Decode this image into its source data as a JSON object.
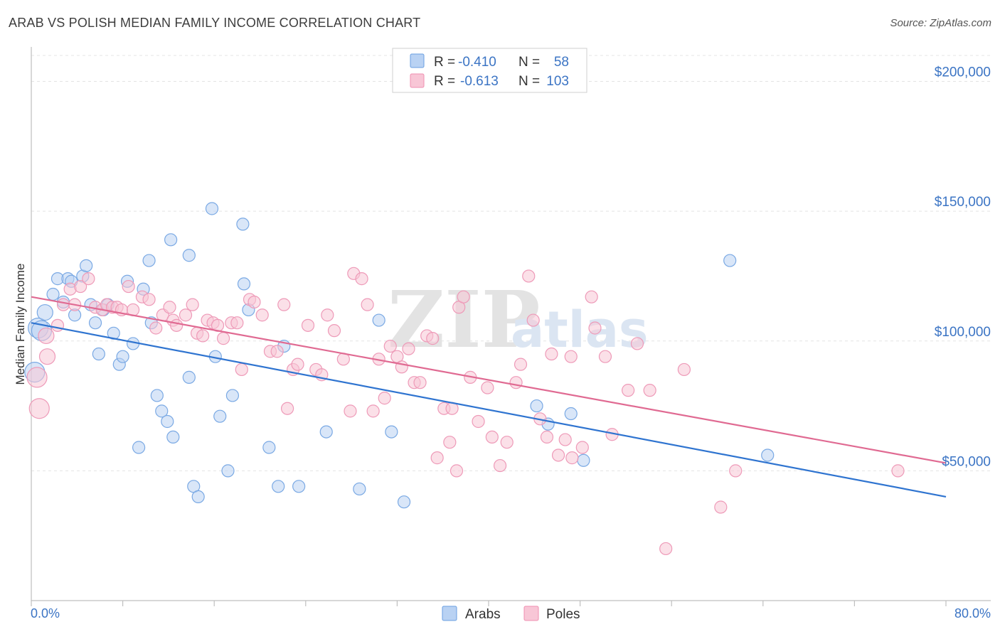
{
  "title": "ARAB VS POLISH MEDIAN FAMILY INCOME CORRELATION CHART",
  "source": "Source: ZipAtlas.com",
  "watermark": {
    "zip": "ZIP",
    "atlas": "atlas"
  },
  "legend": {
    "rows": [
      {
        "r_label": "R =",
        "r_value": "-0.410",
        "n_label": "N =",
        "n_value": "58"
      },
      {
        "r_label": "R =",
        "r_value": "-0.613",
        "n_label": "N =",
        "n_value": "103"
      }
    ]
  },
  "chart_data": {
    "type": "scatter",
    "title": "ARAB VS POLISH MEDIAN FAMILY INCOME CORRELATION CHART",
    "xlabel": "",
    "ylabel": "Median Family Income",
    "xlim": [
      0,
      80
    ],
    "ylim": [
      0,
      210000
    ],
    "x_tick_labels": [
      "0.0%",
      "80.0%"
    ],
    "y_ticks": [
      50000,
      100000,
      150000,
      200000
    ],
    "y_tick_labels": [
      "$50,000",
      "$100,000",
      "$150,000",
      "$200,000"
    ],
    "colors": {
      "Arabs": "#6a9fe0",
      "Poles": "#ef8fb0",
      "Arabs_line": "#2f74d0",
      "Poles_line": "#e06a92"
    },
    "series": [
      {
        "name": "Arabs",
        "trend": {
          "x": [
            0,
            80
          ],
          "y": [
            107000,
            40000
          ]
        },
        "points": [
          [
            0.3,
            88000
          ],
          [
            0.6,
            105000
          ],
          [
            1.2,
            111000
          ],
          [
            1.9,
            118000
          ],
          [
            2.3,
            124000
          ],
          [
            2.8,
            115000
          ],
          [
            3.2,
            124000
          ],
          [
            3.5,
            123000
          ],
          [
            3.8,
            110000
          ],
          [
            4.5,
            125000
          ],
          [
            4.8,
            129000
          ],
          [
            5.2,
            114000
          ],
          [
            5.6,
            107000
          ],
          [
            5.9,
            95000
          ],
          [
            6.3,
            112000
          ],
          [
            6.7,
            114000
          ],
          [
            7.2,
            103000
          ],
          [
            7.7,
            91000
          ],
          [
            8.0,
            94000
          ],
          [
            8.4,
            123000
          ],
          [
            8.9,
            99000
          ],
          [
            9.4,
            59000
          ],
          [
            9.8,
            120000
          ],
          [
            10.3,
            131000
          ],
          [
            10.5,
            107000
          ],
          [
            11.0,
            79000
          ],
          [
            11.4,
            73000
          ],
          [
            11.9,
            69000
          ],
          [
            12.4,
            63000
          ],
          [
            12.2,
            139000
          ],
          [
            13.8,
            133000
          ],
          [
            13.8,
            86000
          ],
          [
            14.2,
            44000
          ],
          [
            14.6,
            40000
          ],
          [
            15.8,
            151000
          ],
          [
            16.1,
            94000
          ],
          [
            16.5,
            71000
          ],
          [
            17.2,
            50000
          ],
          [
            17.6,
            79000
          ],
          [
            18.5,
            145000
          ],
          [
            18.6,
            122000
          ],
          [
            19.0,
            112000
          ],
          [
            20.8,
            59000
          ],
          [
            21.6,
            44000
          ],
          [
            22.1,
            98000
          ],
          [
            23.4,
            44000
          ],
          [
            25.8,
            65000
          ],
          [
            28.7,
            43000
          ],
          [
            30.4,
            108000
          ],
          [
            31.5,
            65000
          ],
          [
            32.6,
            38000
          ],
          [
            44.2,
            75000
          ],
          [
            45.2,
            68000
          ],
          [
            47.2,
            72000
          ],
          [
            48.3,
            54000
          ],
          [
            61.1,
            131000
          ],
          [
            64.4,
            56000
          ],
          [
            0.9,
            104000
          ]
        ]
      },
      {
        "name": "Poles",
        "trend": {
          "x": [
            0,
            80
          ],
          "y": [
            117000,
            53000
          ]
        },
        "points": [
          [
            0.5,
            86000
          ],
          [
            0.7,
            74000
          ],
          [
            1.3,
            102000
          ],
          [
            1.4,
            94000
          ],
          [
            2.3,
            106000
          ],
          [
            2.8,
            114000
          ],
          [
            3.4,
            120000
          ],
          [
            3.8,
            114000
          ],
          [
            4.3,
            121000
          ],
          [
            5.0,
            124000
          ],
          [
            5.6,
            113000
          ],
          [
            6.2,
            112000
          ],
          [
            6.6,
            114000
          ],
          [
            7.1,
            113000
          ],
          [
            7.5,
            113000
          ],
          [
            7.9,
            112000
          ],
          [
            8.5,
            121000
          ],
          [
            8.9,
            112000
          ],
          [
            9.7,
            117000
          ],
          [
            10.3,
            116000
          ],
          [
            10.9,
            105000
          ],
          [
            11.5,
            110000
          ],
          [
            12.1,
            113000
          ],
          [
            12.4,
            108000
          ],
          [
            12.7,
            106000
          ],
          [
            13.5,
            110000
          ],
          [
            14.1,
            114000
          ],
          [
            14.5,
            103000
          ],
          [
            15.0,
            102000
          ],
          [
            15.4,
            108000
          ],
          [
            15.9,
            107000
          ],
          [
            16.3,
            106000
          ],
          [
            16.8,
            101000
          ],
          [
            17.5,
            107000
          ],
          [
            18.0,
            107000
          ],
          [
            18.4,
            89000
          ],
          [
            19.1,
            116000
          ],
          [
            19.5,
            115000
          ],
          [
            20.2,
            110000
          ],
          [
            20.9,
            96000
          ],
          [
            21.5,
            96000
          ],
          [
            22.1,
            114000
          ],
          [
            22.4,
            74000
          ],
          [
            22.9,
            89000
          ],
          [
            23.3,
            91000
          ],
          [
            24.2,
            106000
          ],
          [
            24.9,
            89000
          ],
          [
            25.4,
            87000
          ],
          [
            25.9,
            110000
          ],
          [
            26.5,
            104000
          ],
          [
            27.3,
            93000
          ],
          [
            27.9,
            73000
          ],
          [
            28.2,
            126000
          ],
          [
            28.9,
            124000
          ],
          [
            29.4,
            114000
          ],
          [
            29.9,
            73000
          ],
          [
            30.4,
            93000
          ],
          [
            30.9,
            78000
          ],
          [
            31.4,
            98000
          ],
          [
            32.0,
            94000
          ],
          [
            32.4,
            90000
          ],
          [
            33.0,
            97000
          ],
          [
            33.5,
            84000
          ],
          [
            34.0,
            84000
          ],
          [
            34.6,
            102000
          ],
          [
            35.1,
            101000
          ],
          [
            35.5,
            55000
          ],
          [
            36.1,
            74000
          ],
          [
            36.6,
            61000
          ],
          [
            37.2,
            50000
          ],
          [
            37.4,
            113000
          ],
          [
            37.8,
            117000
          ],
          [
            38.4,
            86000
          ],
          [
            39.1,
            69000
          ],
          [
            39.9,
            82000
          ],
          [
            40.3,
            63000
          ],
          [
            41.0,
            52000
          ],
          [
            41.6,
            61000
          ],
          [
            42.4,
            84000
          ],
          [
            42.8,
            91000
          ],
          [
            43.5,
            125000
          ],
          [
            43.9,
            108000
          ],
          [
            44.5,
            70000
          ],
          [
            45.1,
            63000
          ],
          [
            45.5,
            95000
          ],
          [
            46.1,
            56000
          ],
          [
            46.7,
            62000
          ],
          [
            47.2,
            94000
          ],
          [
            48.2,
            59000
          ],
          [
            49.0,
            117000
          ],
          [
            49.3,
            105000
          ],
          [
            50.2,
            94000
          ],
          [
            50.8,
            64000
          ],
          [
            52.2,
            81000
          ],
          [
            53.0,
            99000
          ],
          [
            54.1,
            81000
          ],
          [
            55.5,
            20000
          ],
          [
            57.1,
            89000
          ],
          [
            60.3,
            36000
          ],
          [
            61.6,
            50000
          ],
          [
            75.8,
            50000
          ],
          [
            47.3,
            55000
          ],
          [
            36.8,
            74000
          ]
        ]
      }
    ]
  },
  "bottom_legend": [
    {
      "label": "Arabs"
    },
    {
      "label": "Poles"
    }
  ]
}
